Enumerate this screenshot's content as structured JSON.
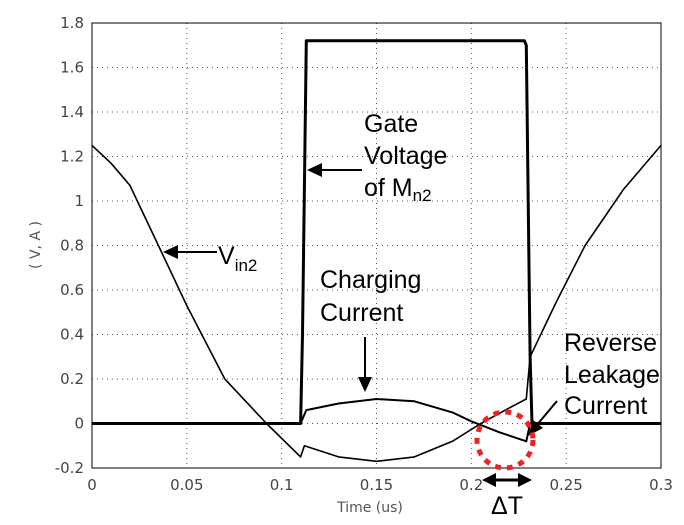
{
  "chart_data": {
    "type": "line",
    "title": "",
    "xlabel": "Time (us)",
    "ylabel": "( V, A )",
    "xlim": [
      0,
      0.3
    ],
    "ylim": [
      -0.2,
      1.8
    ],
    "xticks": [
      "0",
      "0.05",
      "0.1",
      "0.15",
      "0.2",
      "0.25",
      "0.3"
    ],
    "yticks": [
      "-0.2",
      "0",
      "0.2",
      "0.4",
      "0.6",
      "0.8",
      "1",
      "1.2",
      "1.4",
      "1.6",
      "1.8"
    ],
    "grid": true,
    "series": [
      {
        "name": "Vin2",
        "x": [
          0,
          0.01,
          0.02,
          0.035,
          0.05,
          0.07,
          0.092,
          0.11,
          0.112,
          0.13,
          0.15,
          0.17,
          0.19,
          0.205,
          0.22,
          0.229,
          0.231,
          0.245,
          0.26,
          0.28,
          0.3
        ],
        "y": [
          1.25,
          1.17,
          1.07,
          0.8,
          0.53,
          0.2,
          0,
          -0.15,
          -0.1,
          -0.15,
          -0.17,
          -0.15,
          -0.08,
          0,
          0.07,
          0.11,
          0.3,
          0.55,
          0.8,
          1.05,
          1.25
        ]
      },
      {
        "name": "Gate Voltage of Mn2",
        "x": [
          0,
          0.11,
          0.111,
          0.113,
          0.16,
          0.228,
          0.229,
          0.231,
          0.232,
          0.3
        ],
        "y": [
          0,
          0,
          0.4,
          1.72,
          1.72,
          1.72,
          1.7,
          0.3,
          0,
          0
        ],
        "name_parts": {
          "text": "Gate Voltage of M",
          "sub": "n2"
        }
      },
      {
        "name": "Charging Current",
        "x": [
          0,
          0.11,
          0.113,
          0.13,
          0.15,
          0.17,
          0.19,
          0.2,
          0.215,
          0.229,
          0.231,
          0.3
        ],
        "y": [
          0,
          0,
          0.06,
          0.09,
          0.11,
          0.1,
          0.05,
          0.01,
          -0.04,
          -0.08,
          0,
          0
        ]
      }
    ],
    "annotations": {
      "gate_line1": "Gate",
      "gate_line2": "Voltage",
      "gate_line3": "of M",
      "gate_sub": "n2",
      "vin_main": "V",
      "vin_sub": "in2",
      "charging_line1": "Charging",
      "charging_line2": "Current",
      "reverse_line1": "Reverse",
      "reverse_line2": "Leakage",
      "reverse_line3": "Current",
      "delta": "ΔT"
    },
    "colors": {
      "lines": "#000000",
      "circle": "#ee2222",
      "grid": "#555555"
    }
  }
}
